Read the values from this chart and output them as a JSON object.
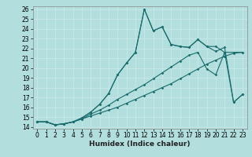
{
  "xlabel": "Humidex (Indice chaleur)",
  "bg_color": "#b2dede",
  "grid_color": "#c8e8e8",
  "line_color": "#1a6b6b",
  "xlim": [
    -0.5,
    23.5
  ],
  "ylim": [
    13.8,
    26.3
  ],
  "xticks": [
    0,
    1,
    2,
    3,
    4,
    5,
    6,
    7,
    8,
    9,
    10,
    11,
    12,
    13,
    14,
    15,
    16,
    17,
    18,
    19,
    20,
    21,
    22,
    23
  ],
  "yticks": [
    14,
    15,
    16,
    17,
    18,
    19,
    20,
    21,
    22,
    23,
    24,
    25,
    26
  ],
  "line1_x": [
    0,
    1,
    2,
    3,
    4,
    5,
    6,
    7,
    8,
    9,
    10,
    11,
    12,
    13,
    14,
    15,
    16,
    17,
    18,
    19,
    20,
    21,
    22,
    23
  ],
  "line1_y": [
    14.5,
    14.5,
    14.2,
    14.3,
    14.5,
    14.8,
    15.1,
    15.4,
    15.7,
    16.0,
    16.4,
    16.8,
    17.2,
    17.6,
    18.0,
    18.4,
    18.9,
    19.4,
    19.9,
    20.4,
    20.8,
    21.2,
    21.5,
    21.6
  ],
  "line2_x": [
    0,
    1,
    2,
    3,
    4,
    5,
    6,
    7,
    8,
    9,
    10,
    11,
    12,
    13,
    14,
    15,
    16,
    17,
    18,
    19,
    20,
    21,
    22,
    23
  ],
  "line2_y": [
    14.5,
    14.5,
    14.2,
    14.3,
    14.5,
    14.8,
    15.3,
    15.7,
    16.2,
    16.8,
    17.3,
    17.8,
    18.3,
    18.9,
    19.5,
    20.1,
    20.7,
    21.3,
    21.6,
    19.9,
    19.3,
    21.6,
    16.5,
    17.3
  ],
  "line3_x": [
    0,
    1,
    2,
    3,
    4,
    5,
    6,
    7,
    8,
    9,
    10,
    11,
    12,
    13,
    14,
    15,
    16,
    17,
    18,
    19,
    20,
    21,
    22,
    23
  ],
  "line3_y": [
    14.5,
    14.5,
    14.2,
    14.3,
    14.5,
    14.9,
    15.5,
    16.3,
    17.4,
    19.3,
    20.5,
    21.6,
    26.0,
    23.8,
    24.2,
    22.4,
    22.2,
    22.1,
    22.9,
    22.2,
    22.2,
    21.6,
    21.6,
    21.6
  ],
  "line4_x": [
    0,
    1,
    2,
    3,
    4,
    5,
    6,
    7,
    8,
    9,
    10,
    11,
    12,
    13,
    14,
    15,
    16,
    17,
    18,
    19,
    20,
    21,
    22,
    23
  ],
  "line4_y": [
    14.5,
    14.5,
    14.2,
    14.3,
    14.5,
    14.9,
    15.5,
    16.3,
    17.4,
    19.3,
    20.5,
    21.6,
    26.0,
    23.8,
    24.2,
    22.4,
    22.2,
    22.1,
    22.9,
    22.2,
    21.7,
    22.1,
    16.5,
    17.3
  ],
  "tick_fontsize": 5.5,
  "xlabel_fontsize": 6.5
}
